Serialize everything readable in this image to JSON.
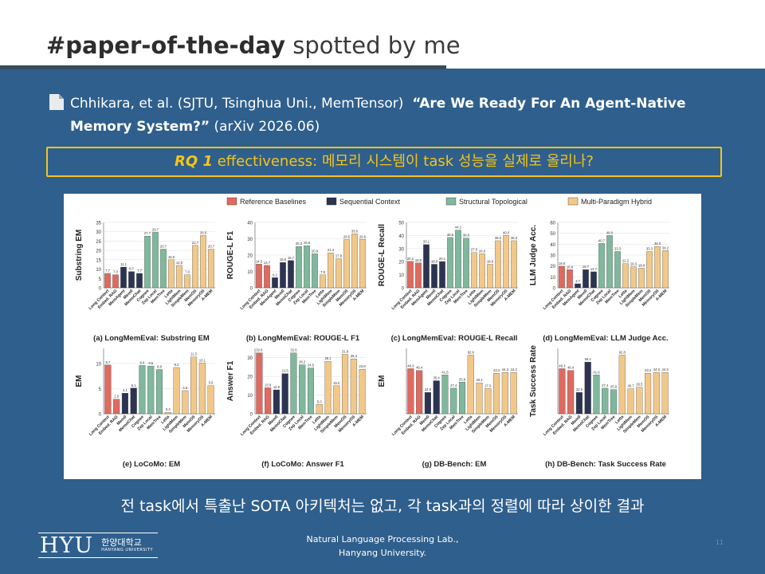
{
  "title": {
    "hashtag": "#paper-of-the-day",
    "suffix": " spotted by me"
  },
  "citation": {
    "authors": "Chhikara, et al. (SJTU, Tsinghua Uni., MemTensor)",
    "paper_title": "“Are We Ready For An Agent-Native Memory System?”",
    "venue": " (arXiv 2026.06)"
  },
  "rq": {
    "label": "RQ 1",
    "text": " effectiveness: 메모리 시스템이 task 성능을 실제로 올리나?"
  },
  "conclusion": "전 task에서 특출난 SOTA 아키텍처는 없고, 각 task과의 정렬에 따라 상이한 결과",
  "footer": {
    "line1": "Natural Language Processing Lab.,",
    "line2": "Hanyang University."
  },
  "logo": {
    "mark": "HYU",
    "korean": "한양대학교",
    "english": "HANYANG UNIVERSITY"
  },
  "page_number": "11",
  "colors": {
    "reference": "#e06a5f",
    "sequential": "#2c3452",
    "structural": "#7fb89c",
    "hybrid": "#f2c88a",
    "accent": "#f5c518"
  },
  "chart_data": [
    {
      "type": "bar",
      "legend": [
        "Reference Baselines",
        "Sequential Context",
        "Structural Topological",
        "Multi-Paradigm Hybrid"
      ],
      "categories": [
        "Long Context",
        "Embed. RAG",
        "MemAgent",
        "Mem0",
        "MemoChat",
        "Cognee",
        "Zep Local",
        "MemTree",
        "Letta",
        "LightMem",
        "SimpleMem",
        "MemOS",
        "MemoryOS",
        "A-MEM"
      ],
      "groups": [
        "ref",
        "ref",
        "seq",
        "seq",
        "seq",
        "str",
        "str",
        "str",
        "hyb",
        "hyb",
        "hyb",
        "hyb",
        "hyb",
        "hyb"
      ],
      "title": "(a) LongMemEval: Substring EM",
      "ylabel": "Substring EM",
      "ylim": [
        0,
        35
      ],
      "yticks": [
        0,
        5,
        10,
        15,
        20,
        25,
        30,
        35
      ],
      "values": [
        7.7,
        7.0,
        11.1,
        8.7,
        7.7,
        27.7,
        29.7,
        20.7,
        15.0,
        12.0,
        7.0,
        22.7,
        28.0,
        20.7
      ],
      "labels": [
        "7.7",
        "7.0",
        "11.1",
        "8.7",
        "7.7",
        "27.7",
        "29.7",
        "20.7",
        "15.0",
        "12.0",
        "7.0",
        "22.7",
        "28.0",
        "20.7"
      ]
    },
    {
      "type": "bar",
      "categories": [
        "Long Context",
        "Embed. RAG",
        "MemAgent",
        "Mem0",
        "MemoChat",
        "Cognee",
        "Zep Local",
        "MemTree",
        "Letta",
        "LightMem",
        "SimpleMem",
        "MemOS",
        "MemoryOS",
        "A-MEM"
      ],
      "title": "(b) LongMemEval: ROUGE-L F1",
      "ylabel": "ROUGE-L F1",
      "ylim": [
        0,
        40
      ],
      "yticks": [
        0,
        10,
        20,
        30,
        40
      ],
      "values": [
        14.5,
        13.7,
        6.2,
        15.5,
        16.7,
        25.3,
        25.8,
        20.8,
        7.9,
        21.4,
        17.8,
        29.5,
        33.0,
        29.6
      ],
      "labels": [
        "14.5",
        "13.7",
        "6.2",
        "15.5",
        "16.7",
        "25.3",
        "25.8",
        "20.8",
        "7.9",
        "21.4",
        "17.8",
        "29.5",
        "33.0",
        "29.6"
      ]
    },
    {
      "type": "bar",
      "categories": [
        "Long Context",
        "Embed. RAG",
        "MemAgent",
        "Mem0",
        "MemoChat",
        "Cognee",
        "Zep Local",
        "MemTree",
        "Letta",
        "LightMem",
        "SimpleMem",
        "MemOS",
        "MemoryOS",
        "A-MEM"
      ],
      "title": "(c) LongMemEval: ROUGE-L Recall",
      "ylabel": "ROUGE-L Recall",
      "ylim": [
        0,
        50
      ],
      "yticks": [
        0,
        10,
        20,
        30,
        40,
        50
      ],
      "values": [
        20.2,
        19.0,
        33.1,
        18.0,
        20.1,
        38.5,
        44.1,
        38.0,
        27.0,
        26.0,
        18.0,
        36.0,
        40.0,
        36.0
      ],
      "labels": [
        "20.2",
        "19.0",
        "33.1",
        "18.0",
        "20.1",
        "38.5",
        "44.1",
        "38.0",
        "27.0",
        "26.0",
        "18.0",
        "36.0",
        "40.0",
        "36.0"
      ]
    },
    {
      "type": "bar",
      "categories": [
        "Long Context",
        "Embed. RAG",
        "MemAgent",
        "Mem0",
        "MemoChat",
        "Cognee",
        "Zep Local",
        "MemTree",
        "Letta",
        "LightMem",
        "SimpleMem",
        "MemOS",
        "MemoryOS",
        "A-MEM"
      ],
      "title": "(d) LongMemEval: LLM Judge Acc.",
      "ylabel": "LLM Judge Acc.",
      "ylim": [
        0,
        60
      ],
      "yticks": [
        0,
        10,
        20,
        30,
        40,
        50,
        60
      ],
      "values": [
        19.8,
        16.6,
        3.7,
        16.7,
        14.7,
        40.7,
        48.0,
        33.3,
        22.2,
        19.3,
        18.0,
        33.3,
        38.0,
        34.2
      ],
      "labels": [
        "19.8",
        "16.6",
        "3.7",
        "16.7",
        "14.7",
        "40.7",
        "48.0",
        "33.3",
        "22.2",
        "19.3",
        "18.0",
        "33.3",
        "38.0",
        "34.2"
      ]
    },
    {
      "type": "bar",
      "categories": [
        "Long Context",
        "Embed. RAG",
        "Mem0",
        "MemoChat",
        "Cognee",
        "Zep Local",
        "MemTree",
        "Letta",
        "LightMem",
        "SimpleMem",
        "MemOS",
        "MemoryOS",
        "A-MEM"
      ],
      "title": "(e) LoCoMo: EM",
      "ylabel": "EM",
      "ylim": [
        0,
        13
      ],
      "yticks": [
        0,
        5,
        10
      ],
      "values": [
        9.7,
        2.9,
        4.1,
        5.1,
        9.6,
        9.5,
        8.8,
        0.3,
        9.2,
        4.6,
        11.3,
        10.1,
        5.6
      ],
      "labels": [
        "9.7",
        "2.9",
        "4.1",
        "5.1",
        "9.6",
        "9.5",
        "8.8",
        "0.3",
        "9.2",
        "4.6",
        "11.3",
        "10.1",
        "5.6"
      ]
    },
    {
      "type": "bar",
      "categories": [
        "Long Context",
        "Embed. RAG",
        "Mem0",
        "MemoChat",
        "Cognee",
        "Zep Local",
        "MemTree",
        "Letta",
        "LightMem",
        "SimpleMem",
        "MemOS",
        "MemoryOS",
        "A-MEM"
      ],
      "title": "(f) LoCoMo: Answer F1",
      "ylabel": "Answer F1",
      "ylim": [
        0,
        35
      ],
      "yticks": [
        0,
        10,
        20,
        30
      ],
      "values": [
        32.6,
        13.9,
        12.8,
        21.5,
        32.6,
        26.2,
        24.5,
        5.0,
        28.1,
        15.0,
        31.8,
        29.4,
        23.8
      ],
      "labels": [
        "32.6",
        "13.9",
        "12.8",
        "21.5",
        "32.6",
        "26.2",
        "24.5",
        "5.0",
        "28.1",
        "15.0",
        "31.8",
        "29.4",
        "23.8"
      ]
    },
    {
      "type": "bar",
      "categories": [
        "Long Context",
        "Embed. RAG",
        "Mem0",
        "MemoChat",
        "Cognee",
        "Zep Local",
        "MemTree",
        "Letta",
        "LightMem",
        "SimpleMem",
        "MemOS",
        "MemoryOS",
        "A-MEM"
      ],
      "title": "(g) DB-Bench: EM",
      "ylabel": "EM",
      "ylim": [
        0,
        70
      ],
      "values": [
        48.3,
        46.4,
        22.9,
        35.4,
        41.6,
        27.4,
        33.9,
        62.8,
        33.2,
        27.0,
        43.4,
        44.3,
        44.3
      ],
      "labels": [
        "48.3",
        "46.4",
        "22.9",
        "35.4",
        "41.6",
        "27.4",
        "33.9",
        "62.8",
        "33.2",
        "27.0",
        "43.4",
        "44.3",
        "44.3"
      ]
    },
    {
      "type": "bar",
      "categories": [
        "Long Context",
        "Embed. RAG",
        "Mem0",
        "MemoChat",
        "Cognee",
        "Zep Local",
        "MemTree",
        "Letta",
        "LightMem",
        "SimpleMem",
        "MemOS",
        "MemoryOS",
        "A-MEM"
      ],
      "title": "(h) DB-Bench: Task Success Rate",
      "ylabel": "Task Success Rate",
      "ylim": [
        0,
        70
      ],
      "values": [
        48.3,
        46.4,
        22.9,
        55.4,
        41.6,
        27.4,
        25.9,
        62.8,
        26.7,
        28.5,
        43.4,
        44.3,
        44.3
      ],
      "labels": [
        "48.3",
        "46.4",
        "22.9",
        "55.4",
        "41.6",
        "27.4",
        "25.9",
        "62.8",
        "26.7",
        "28.5",
        "43.4",
        "44.3",
        "44.3"
      ]
    }
  ]
}
